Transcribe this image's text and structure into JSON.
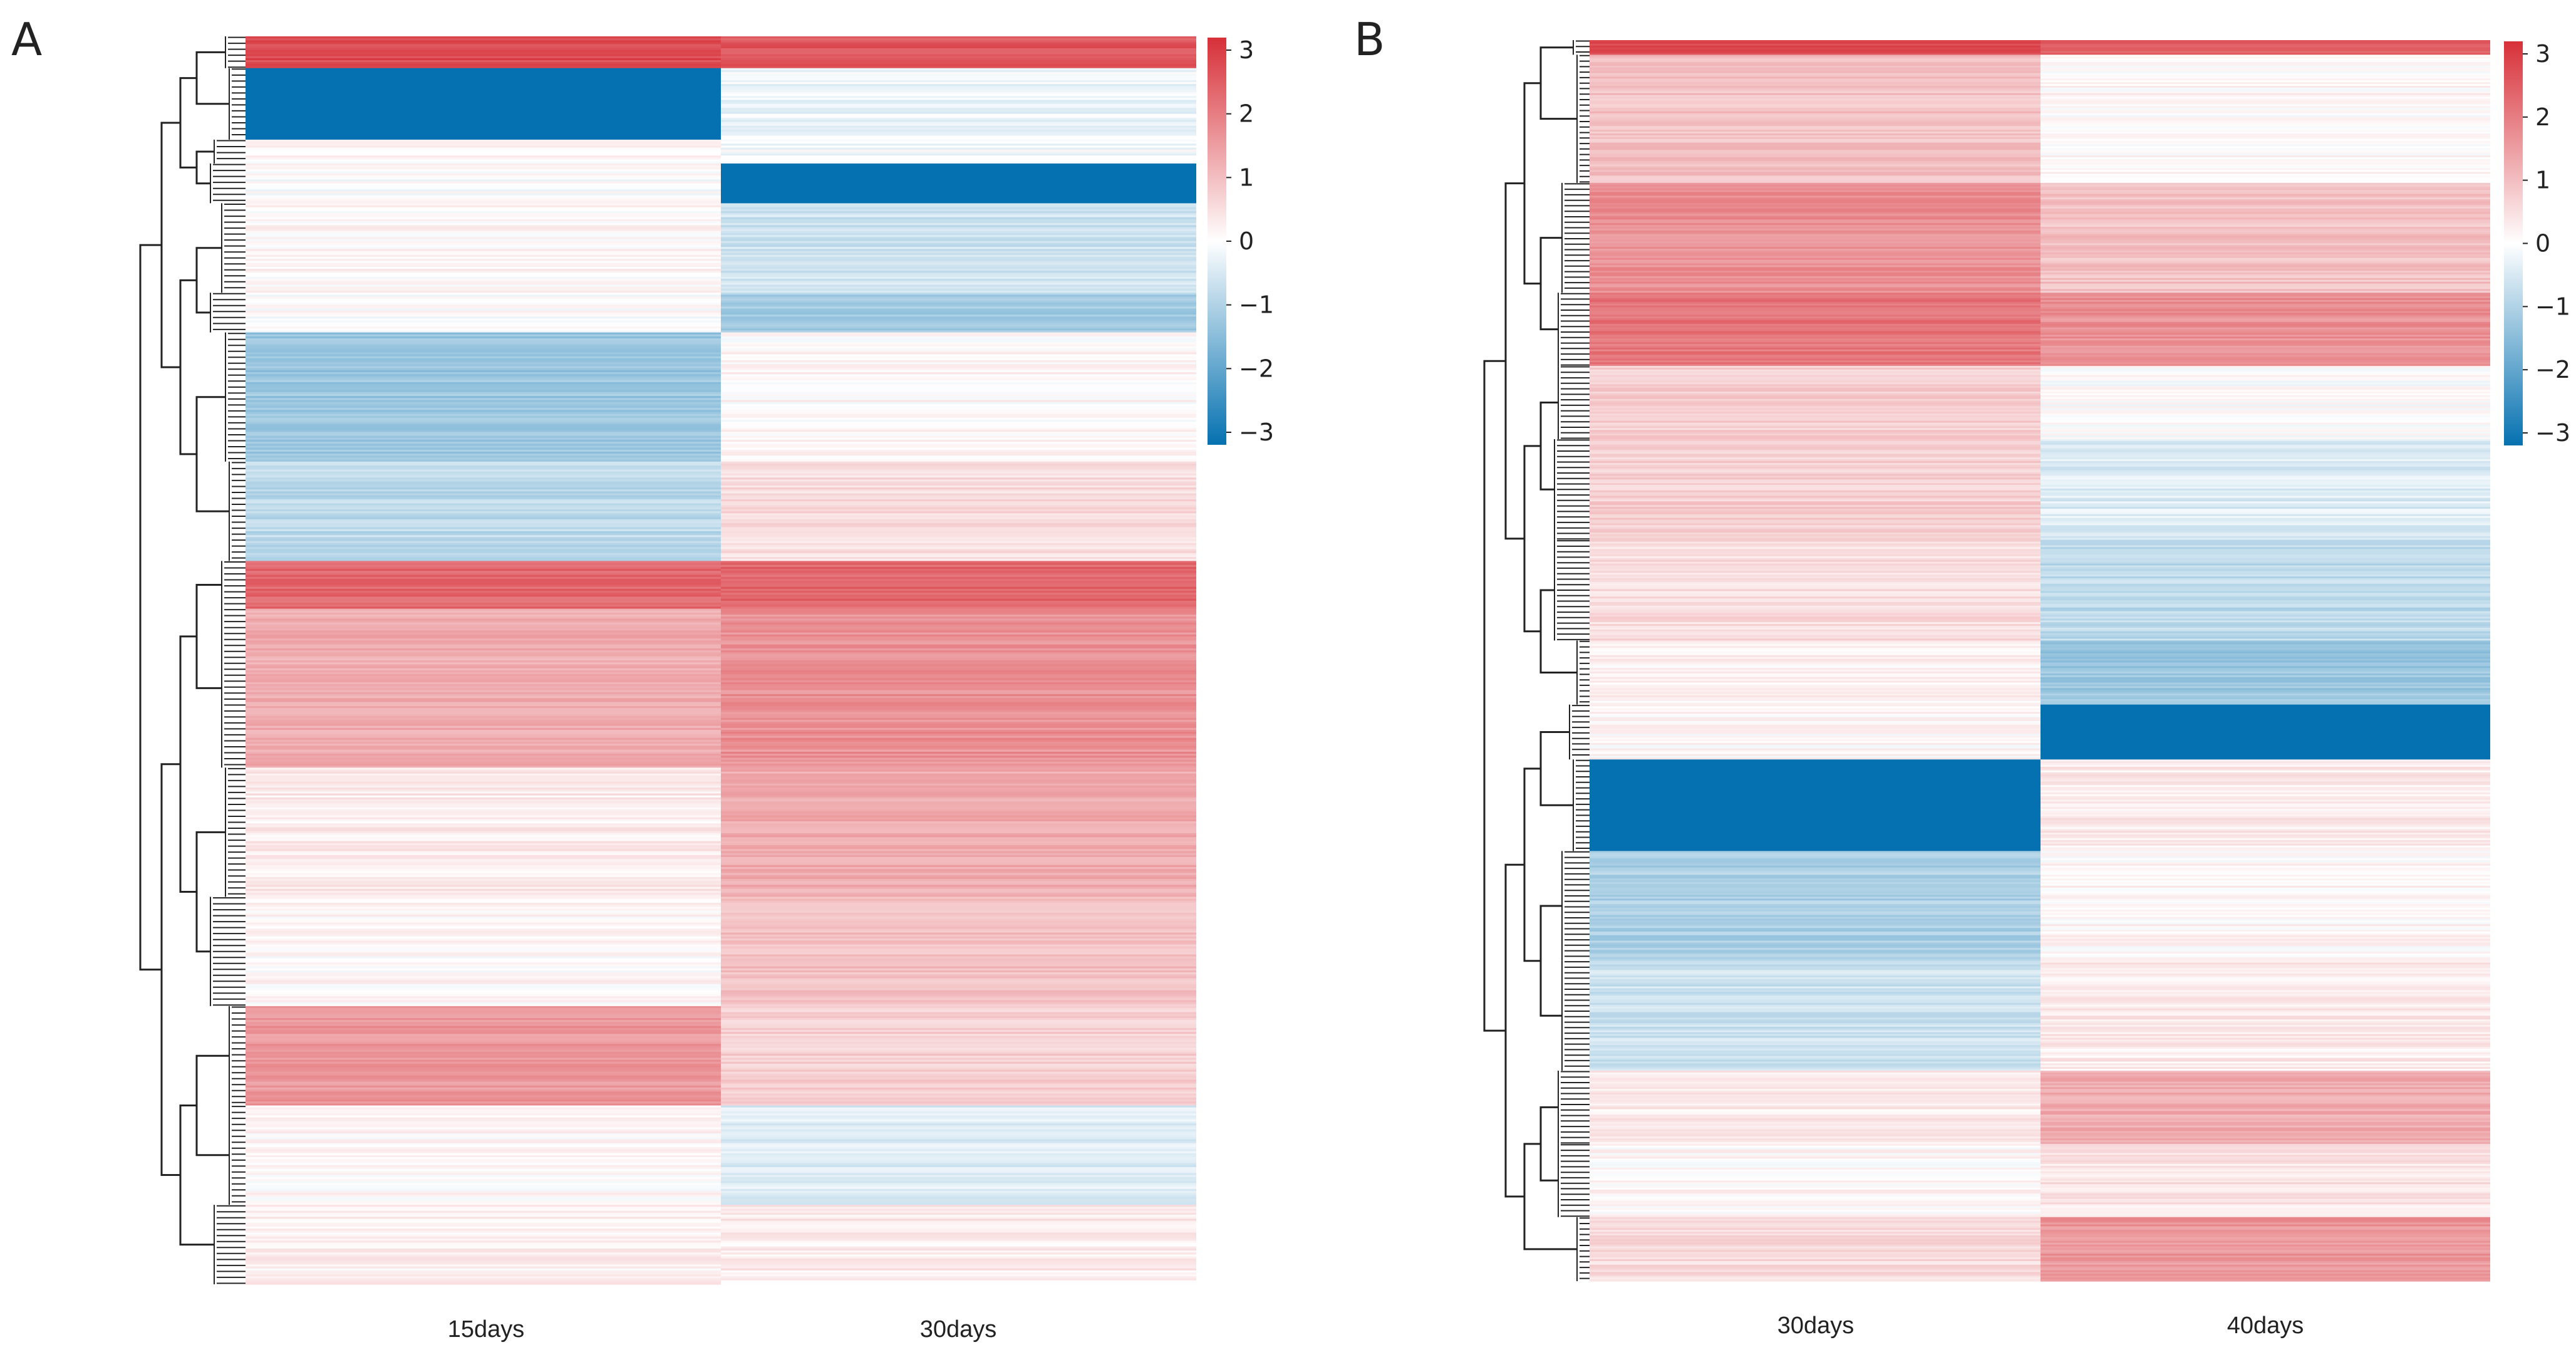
{
  "figure": {
    "panels": [
      "A",
      "B"
    ]
  },
  "colorbar": {
    "ticks": [
      "3",
      "2",
      "1",
      "0",
      "−1",
      "−2",
      "−3"
    ],
    "min": -3,
    "max": 3
  },
  "colors": {
    "high": "#d73038",
    "mid": "#ffffff",
    "low": "#0571b0"
  },
  "chart_data": [
    {
      "type": "heatmap",
      "panel": "A",
      "columns": [
        "15days",
        "30days"
      ],
      "value_range": [
        -3,
        3
      ],
      "row_blocks": [
        {
          "rows": 16,
          "values": [
            2.6,
            2.4
          ]
        },
        {
          "rows": 36,
          "values": [
            -3.0,
            -0.2
          ]
        },
        {
          "rows": 12,
          "values": [
            0.05,
            -0.1
          ]
        },
        {
          "rows": 20,
          "values": [
            0.0,
            -3.0
          ]
        },
        {
          "rows": 45,
          "values": [
            0.1,
            -0.6
          ]
        },
        {
          "rows": 20,
          "values": [
            0.0,
            -1.1
          ]
        },
        {
          "rows": 65,
          "values": [
            -1.2,
            0.1
          ]
        },
        {
          "rows": 50,
          "values": [
            -0.8,
            0.5
          ]
        },
        {
          "rows": 24,
          "values": [
            2.2,
            2.2
          ]
        },
        {
          "rows": 80,
          "values": [
            1.2,
            1.6
          ]
        },
        {
          "rows": 65,
          "values": [
            0.3,
            1.2
          ]
        },
        {
          "rows": 55,
          "values": [
            0.1,
            0.9
          ]
        },
        {
          "rows": 50,
          "values": [
            1.5,
            0.7
          ]
        },
        {
          "rows": 50,
          "values": [
            0.1,
            -0.4
          ]
        },
        {
          "rows": 40,
          "values": [
            0.2,
            0.3
          ]
        }
      ]
    },
    {
      "type": "heatmap",
      "panel": "B",
      "columns": [
        "30days",
        "40days"
      ],
      "value_range": [
        -3,
        3
      ],
      "row_blocks": [
        {
          "rows": 8,
          "values": [
            2.6,
            2.4
          ]
        },
        {
          "rows": 70,
          "values": [
            0.9,
            0.1
          ]
        },
        {
          "rows": 60,
          "values": [
            1.6,
            0.9
          ]
        },
        {
          "rows": 40,
          "values": [
            2.0,
            1.6
          ]
        },
        {
          "rows": 40,
          "values": [
            0.7,
            0.0
          ]
        },
        {
          "rows": 55,
          "values": [
            0.7,
            -0.4
          ]
        },
        {
          "rows": 55,
          "values": [
            0.5,
            -0.8
          ]
        },
        {
          "rows": 35,
          "values": [
            0.2,
            -1.2
          ]
        },
        {
          "rows": 30,
          "values": [
            0.1,
            -3.0
          ]
        },
        {
          "rows": 50,
          "values": [
            -3.0,
            0.3
          ]
        },
        {
          "rows": 60,
          "values": [
            -1.0,
            0.1
          ]
        },
        {
          "rows": 60,
          "values": [
            -0.6,
            0.3
          ]
        },
        {
          "rows": 40,
          "values": [
            0.3,
            1.2
          ]
        },
        {
          "rows": 40,
          "values": [
            0.1,
            0.4
          ]
        },
        {
          "rows": 35,
          "values": [
            0.5,
            1.5
          ]
        }
      ]
    }
  ]
}
